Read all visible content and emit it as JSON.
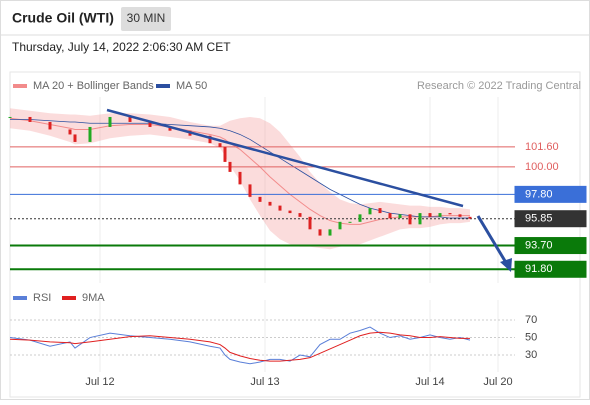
{
  "header": {
    "title": "Crude Oil (WTI)",
    "interval": "30 MIN",
    "timestamp": "Thursday, July 14, 2022 2:06:30 AM CET",
    "credit": "Research © 2022 Trading Central"
  },
  "chart_data": [
    {
      "type": "candlestick",
      "color_up": "#22aa22",
      "color_down": "#dd2222",
      "x": [
        0,
        4,
        8,
        12,
        13,
        16,
        20,
        24,
        28,
        32,
        36,
        40,
        42,
        43,
        44,
        46,
        48,
        50,
        52,
        54,
        56,
        58,
        60,
        62,
        64,
        66,
        68,
        70,
        72,
        74,
        76,
        78,
        80,
        82,
        84,
        86,
        88,
        90,
        92
      ],
      "values": [
        104.0,
        103.6,
        103.0,
        102.6,
        102.0,
        103.2,
        104.0,
        103.6,
        103.2,
        102.9,
        102.5,
        101.9,
        101.6,
        100.4,
        99.6,
        98.6,
        97.6,
        97.2,
        96.9,
        96.5,
        96.3,
        96.0,
        95.0,
        94.5,
        95.0,
        95.6,
        95.6,
        96.2,
        96.7,
        96.3,
        95.9,
        96.2,
        95.4,
        96.3,
        96.0,
        96.3,
        96.2,
        96.0,
        95.85
      ],
      "bands": {
        "name": "MA 20 + Bollinger Bands",
        "color": "#f28b8b",
        "middle": [
          103.9,
          103.7,
          103.4,
          103.1,
          103.0,
          103.0,
          103.3,
          103.4,
          103.4,
          103.2,
          102.9,
          102.6,
          102.4,
          102.2,
          101.9,
          101.4,
          100.7,
          100.0,
          99.2,
          98.5,
          97.8,
          97.2,
          96.6,
          96.1,
          95.7,
          95.5,
          95.4,
          95.4,
          95.6,
          95.8,
          95.9,
          96.0,
          96.0,
          96.0,
          96.0,
          96.1,
          96.1,
          96.1,
          96.1
        ],
        "upper": [
          104.7,
          104.5,
          104.3,
          104.2,
          104.2,
          104.1,
          104.3,
          104.3,
          104.2,
          104.0,
          103.6,
          103.3,
          103.3,
          103.5,
          103.7,
          103.9,
          104.0,
          103.9,
          103.5,
          102.8,
          101.8,
          100.8,
          99.6,
          98.7,
          98.0,
          97.4,
          97.1,
          97.0,
          97.1,
          97.2,
          97.1,
          97.0,
          96.9,
          96.9,
          96.8,
          96.8,
          96.7,
          96.7,
          96.6
        ],
        "lower": [
          103.1,
          102.9,
          102.5,
          102.0,
          101.8,
          101.9,
          102.3,
          102.5,
          102.6,
          102.4,
          102.2,
          101.9,
          101.5,
          100.9,
          100.1,
          98.9,
          97.4,
          96.1,
          94.9,
          94.2,
          93.8,
          93.6,
          93.6,
          93.5,
          93.4,
          93.6,
          93.7,
          93.8,
          94.1,
          94.4,
          94.7,
          95.0,
          95.1,
          95.1,
          95.2,
          95.4,
          95.5,
          95.5,
          95.6
        ]
      },
      "ma50": {
        "name": "MA 50",
        "color": "#2b4fa0",
        "values": [
          103.8,
          103.8,
          103.7,
          103.6,
          103.6,
          103.5,
          103.5,
          103.5,
          103.5,
          103.4,
          103.3,
          103.2,
          103.1,
          103.0,
          102.9,
          102.6,
          102.2,
          101.7,
          101.2,
          100.7,
          100.2,
          99.7,
          99.2,
          98.7,
          98.2,
          97.8,
          97.4,
          97.0,
          96.7,
          96.5,
          96.3,
          96.2,
          96.1,
          96.0,
          96.0,
          96.0,
          95.9,
          95.9,
          95.9
        ]
      },
      "levels": [
        {
          "value": 101.6,
          "label": "101.60",
          "color": "#e06060"
        },
        {
          "value": 100,
          "label": "100.00",
          "color": "#e06060"
        },
        {
          "value": 97.8,
          "label": "97.80",
          "color": "#3a6fd8"
        },
        {
          "value": 95.85,
          "label": "95.85",
          "color": "#333333"
        },
        {
          "value": 93.7,
          "label": "93.70",
          "color": "#0a7a0a"
        },
        {
          "value": 91.8,
          "label": "91.80",
          "color": "#0a7a0a"
        }
      ],
      "xlim": [
        0,
        101
      ],
      "ylim": [
        90.7,
        105.6
      ],
      "xticks": [
        {
          "value": 18,
          "label": "Jul 12"
        },
        {
          "value": 51,
          "label": "Jul 13"
        },
        {
          "value": 84,
          "label": "Jul 14"
        },
        {
          "value": 97.6,
          "label": "Jul 20"
        }
      ],
      "grid": true
    },
    {
      "type": "line",
      "series": [
        {
          "name": "RSI",
          "color": "#5a7fd8",
          "values": [
            50,
            47,
            40,
            45,
            38,
            50,
            55,
            52,
            50,
            48,
            45,
            40,
            38,
            30,
            25,
            22,
            20,
            22,
            25,
            25,
            23,
            30,
            28,
            42,
            48,
            48,
            55,
            58,
            62,
            55,
            50,
            52,
            48,
            50,
            53,
            50,
            48,
            50,
            47
          ]
        },
        {
          "name": "9MA",
          "color": "#e02020",
          "values": [
            48,
            47,
            45,
            44,
            43,
            45,
            48,
            51,
            52,
            50,
            48,
            45,
            42,
            38,
            33,
            29,
            26,
            24,
            23,
            23,
            24,
            25,
            27,
            32,
            37,
            42,
            47,
            52,
            55,
            56,
            55,
            53,
            52,
            50,
            50,
            51,
            50,
            49,
            49
          ]
        }
      ],
      "ylim": [
        10.6,
        92.9
      ],
      "yticks": [
        70,
        50,
        30
      ]
    }
  ]
}
